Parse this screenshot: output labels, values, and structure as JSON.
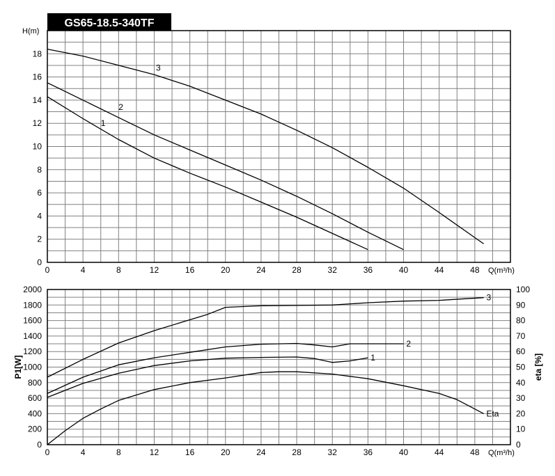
{
  "title": "GS65-18.5-340TF",
  "chart_data": [
    {
      "type": "line",
      "name": "head",
      "ylabel": "H(m)",
      "xlabel": "Q(m³/h)",
      "xlim": [
        0,
        52
      ],
      "ylim": [
        0,
        20
      ],
      "xticks": [
        0,
        4,
        8,
        12,
        16,
        20,
        24,
        28,
        32,
        36,
        40,
        44,
        48
      ],
      "yticks": [
        0,
        2,
        4,
        6,
        8,
        10,
        12,
        14,
        16,
        18
      ],
      "grid": true,
      "series": [
        {
          "name": "1",
          "x": [
            0,
            4,
            8,
            12,
            16,
            20,
            24,
            28,
            32,
            36
          ],
          "y": [
            14.3,
            12.4,
            10.6,
            9.0,
            7.7,
            6.5,
            5.2,
            3.9,
            2.5,
            1.1
          ]
        },
        {
          "name": "2",
          "x": [
            0,
            4,
            8,
            12,
            16,
            20,
            24,
            28,
            32,
            36,
            40
          ],
          "y": [
            15.5,
            14.0,
            12.5,
            11.0,
            9.7,
            8.4,
            7.1,
            5.7,
            4.2,
            2.6,
            1.1
          ]
        },
        {
          "name": "3",
          "x": [
            0,
            4,
            8,
            12,
            16,
            20,
            24,
            28,
            32,
            36,
            40,
            44,
            49
          ],
          "y": [
            18.4,
            17.8,
            17.0,
            16.2,
            15.2,
            14.0,
            12.8,
            11.4,
            9.9,
            8.2,
            6.4,
            4.3,
            1.6
          ]
        }
      ],
      "annotations": [
        {
          "text": "1",
          "x": 6,
          "y": 12.0
        },
        {
          "text": "2",
          "x": 8,
          "y": 13.4
        },
        {
          "text": "3",
          "x": 12.2,
          "y": 16.8
        }
      ]
    },
    {
      "type": "line",
      "name": "power-efficiency",
      "ylabel": "P1[W]",
      "y2label": "eta [%]",
      "xlabel": "Q(m³/h)",
      "xlim": [
        0,
        52
      ],
      "ylim": [
        0,
        2000
      ],
      "y2lim": [
        0,
        100
      ],
      "xticks": [
        0,
        4,
        8,
        12,
        16,
        20,
        24,
        28,
        32,
        36,
        40,
        44,
        48
      ],
      "yticks": [
        0,
        200,
        400,
        600,
        800,
        1000,
        1200,
        1400,
        1600,
        1800,
        2000
      ],
      "y2ticks": [
        0,
        10,
        20,
        30,
        40,
        50,
        60,
        70,
        80,
        90,
        100
      ],
      "grid": true,
      "series": [
        {
          "name": "1",
          "axis": "left",
          "x": [
            0,
            4,
            8,
            12,
            16,
            20,
            24,
            28,
            30,
            32,
            34,
            36
          ],
          "y": [
            610,
            790,
            920,
            1020,
            1080,
            1115,
            1125,
            1130,
            1110,
            1060,
            1080,
            1120
          ]
        },
        {
          "name": "2",
          "axis": "left",
          "x": [
            0,
            4,
            8,
            12,
            16,
            20,
            24,
            28,
            30,
            32,
            34,
            36,
            40
          ],
          "y": [
            660,
            870,
            1030,
            1120,
            1190,
            1260,
            1295,
            1305,
            1285,
            1260,
            1300,
            1300,
            1300
          ]
        },
        {
          "name": "3",
          "axis": "left",
          "x": [
            0,
            4,
            8,
            12,
            16,
            18,
            20,
            24,
            28,
            32,
            36,
            40,
            44,
            49
          ],
          "y": [
            870,
            1100,
            1310,
            1470,
            1610,
            1680,
            1770,
            1790,
            1795,
            1800,
            1830,
            1850,
            1860,
            1895
          ]
        },
        {
          "name": "Eta",
          "axis": "right",
          "x": [
            0,
            2,
            4,
            6,
            8,
            12,
            16,
            20,
            24,
            26,
            28,
            32,
            36,
            40,
            44,
            46,
            49
          ],
          "y": [
            0,
            9,
            17,
            23,
            28.5,
            35.5,
            40,
            43,
            46.5,
            47,
            47,
            45.5,
            42.5,
            38,
            33,
            29,
            20
          ]
        }
      ],
      "annotations": [
        {
          "text": "1",
          "x": 36.3,
          "y": 1120
        },
        {
          "text": "2",
          "x": 40.3,
          "y": 1300
        },
        {
          "text": "3",
          "x": 49.3,
          "y": 1895
        },
        {
          "text": "Eta",
          "x": 49.3,
          "y": 400
        }
      ]
    }
  ]
}
